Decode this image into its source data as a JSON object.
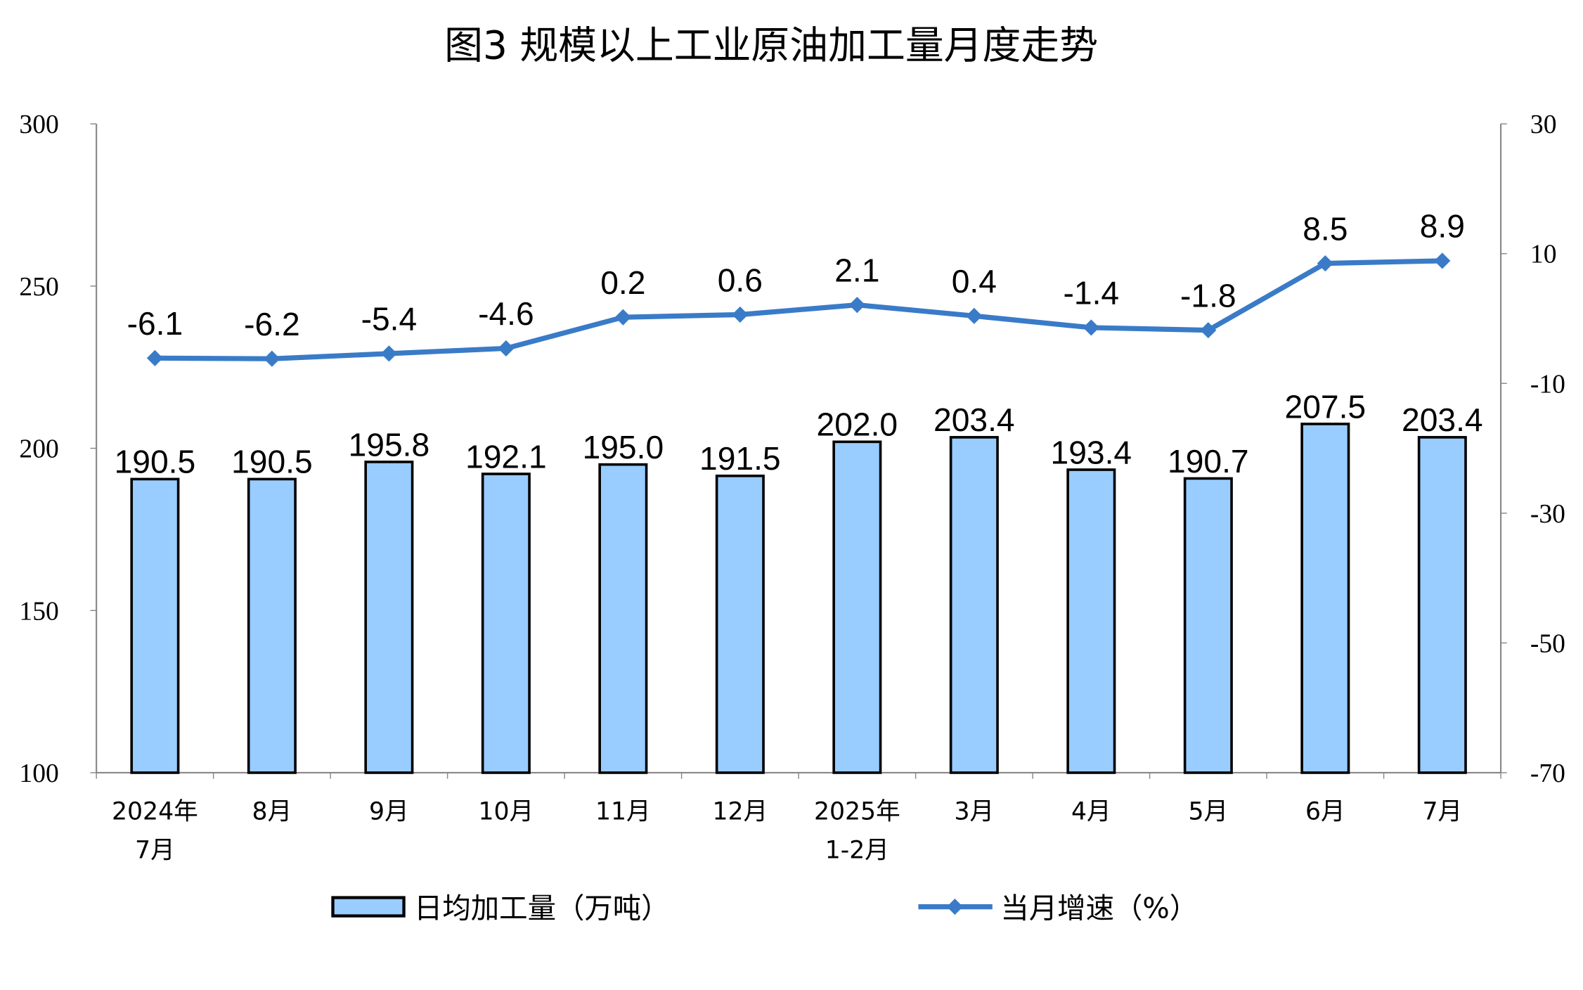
{
  "chart_data": {
    "type": "bar+line",
    "title": "图3  规模以上工业原油加工量月度走势",
    "categories": [
      [
        "2024年",
        "7月"
      ],
      [
        "8月"
      ],
      [
        "9月"
      ],
      [
        "10月"
      ],
      [
        "11月"
      ],
      [
        "12月"
      ],
      [
        "2025年",
        "1-2月"
      ],
      [
        "3月"
      ],
      [
        "4月"
      ],
      [
        "5月"
      ],
      [
        "6月"
      ],
      [
        "7月"
      ]
    ],
    "series": [
      {
        "name": "日均加工量（万吨）",
        "type": "bar",
        "axis": "left",
        "color": "#99ccff",
        "values": [
          190.5,
          190.5,
          195.8,
          192.1,
          195.0,
          191.5,
          202.0,
          203.4,
          193.4,
          190.7,
          207.5,
          203.4
        ],
        "labels": [
          "190.5",
          "190.5",
          "195.8",
          "192.1",
          "195.0",
          "191.5",
          "202.0",
          "203.4",
          "193.4",
          "190.7",
          "207.5",
          "203.4"
        ]
      },
      {
        "name": "当月增速（%）",
        "type": "line",
        "axis": "right",
        "color": "#3a7bc8",
        "marker": "diamond",
        "values": [
          -6.1,
          -6.2,
          -5.4,
          -4.6,
          0.2,
          0.6,
          2.1,
          0.4,
          -1.4,
          -1.8,
          8.5,
          8.9
        ],
        "labels": [
          "-6.1",
          "-6.2",
          "-5.4",
          "-4.6",
          "0.2",
          "0.6",
          "2.1",
          "0.4",
          "-1.4",
          "-1.8",
          "8.5",
          "8.9"
        ]
      }
    ],
    "y_left": {
      "lim": [
        100,
        300
      ],
      "ticks": [
        "100",
        "150",
        "200",
        "250",
        "300"
      ]
    },
    "y_right": {
      "lim": [
        -70,
        30
      ],
      "ticks": [
        "-70",
        "-50",
        "-30",
        "-10",
        "10",
        "30"
      ]
    },
    "grid": false,
    "legend": "bottom"
  }
}
